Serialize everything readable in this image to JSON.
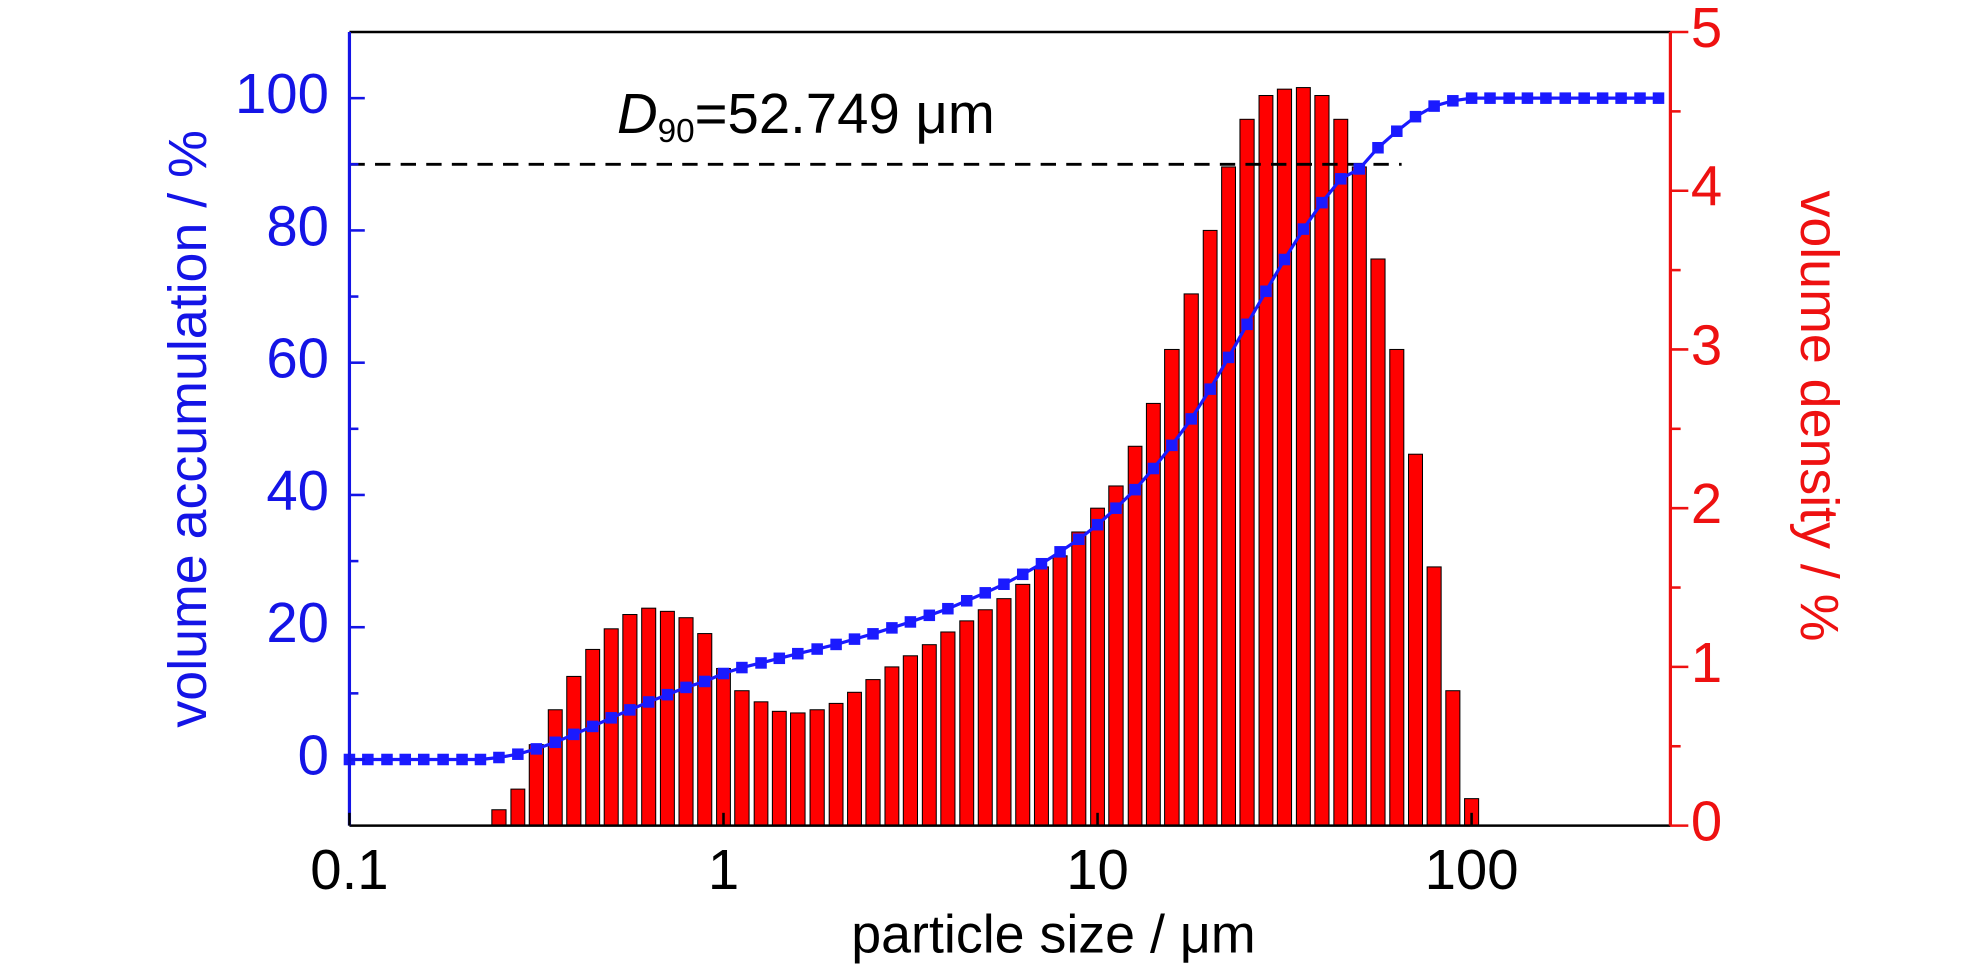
{
  "chart_data": {
    "type": "bar",
    "xlabel": "particle size / μm",
    "ylabel": "volume accumulation / %",
    "y2label": "volume density / %",
    "xscale": "log",
    "xlim": [
      0.1,
      340
    ],
    "xticks": [
      0.1,
      1,
      10,
      100
    ],
    "ylim": [
      -10,
      110
    ],
    "yticks": [
      0,
      20,
      40,
      60,
      80,
      100
    ],
    "yminor": [
      10,
      30,
      50,
      70,
      90
    ],
    "y2lim": [
      0,
      5
    ],
    "y2ticks": [
      0,
      1,
      2,
      3,
      4,
      5
    ],
    "y2minor": [
      0.5,
      1.5,
      2.5,
      3.5,
      4.5
    ],
    "series": [
      {
        "type": "bar",
        "axis": "y2",
        "color": "#ff0000",
        "x": [
          0.251,
          0.282,
          0.316,
          0.355,
          0.398,
          0.447,
          0.501,
          0.562,
          0.631,
          0.708,
          0.794,
          0.891,
          1,
          1.12,
          1.26,
          1.41,
          1.58,
          1.78,
          2,
          2.24,
          2.51,
          2.82,
          3.16,
          3.55,
          3.98,
          4.47,
          5.01,
          5.62,
          6.31,
          7.08,
          7.94,
          8.91,
          10,
          11.2,
          12.6,
          14.1,
          15.8,
          17.8,
          20,
          22.4,
          25.1,
          28.2,
          31.6,
          35.5,
          39.8,
          44.7,
          50.1,
          56.2,
          63.1,
          70.8,
          79.4,
          89.1,
          100
        ],
        "values": [
          0.1,
          0.23,
          0.51,
          0.73,
          0.94,
          1.11,
          1.24,
          1.33,
          1.37,
          1.35,
          1.31,
          1.21,
          0.99,
          0.85,
          0.78,
          0.72,
          0.71,
          0.73,
          0.77,
          0.84,
          0.92,
          1.0,
          1.07,
          1.14,
          1.22,
          1.29,
          1.36,
          1.43,
          1.52,
          1.63,
          1.7,
          1.85,
          2.0,
          2.14,
          2.39,
          2.66,
          3.0,
          3.35,
          3.75,
          4.15,
          4.45,
          4.6,
          4.64,
          4.65,
          4.6,
          4.45,
          4.15,
          3.57,
          3.0,
          2.34,
          1.63,
          0.85,
          0.17
        ]
      },
      {
        "type": "line",
        "color": "#1a1aff",
        "x": [
          0.1,
          0.112,
          0.126,
          0.141,
          0.158,
          0.178,
          0.2,
          0.224,
          0.251,
          0.282,
          0.316,
          0.355,
          0.398,
          0.447,
          0.501,
          0.562,
          0.631,
          0.708,
          0.794,
          0.891,
          1,
          1.12,
          1.26,
          1.41,
          1.58,
          1.78,
          2,
          2.24,
          2.51,
          2.82,
          3.16,
          3.55,
          3.98,
          4.47,
          5.01,
          5.62,
          6.31,
          7.08,
          7.94,
          8.91,
          10,
          11.2,
          12.6,
          14.1,
          15.8,
          17.8,
          20,
          22.4,
          25.1,
          28.2,
          31.6,
          35.5,
          39.8,
          44.7,
          50.1,
          56.2,
          63.1,
          70.8,
          79.4,
          89.1,
          100,
          112,
          126,
          141,
          158,
          178,
          200,
          224,
          251,
          282,
          316
        ],
        "values": [
          0,
          0,
          0,
          0,
          0,
          0,
          0,
          0,
          0.3,
          0.8,
          1.6,
          2.6,
          3.8,
          5.0,
          6.3,
          7.5,
          8.7,
          9.8,
          10.9,
          11.8,
          13.0,
          13.9,
          14.6,
          15.3,
          16.0,
          16.7,
          17.4,
          18.2,
          19.0,
          19.9,
          20.8,
          21.8,
          22.8,
          24.0,
          25.2,
          26.5,
          28.0,
          29.6,
          31.4,
          33.3,
          35.5,
          38.0,
          40.8,
          44.0,
          47.5,
          51.5,
          56.0,
          60.8,
          65.8,
          70.8,
          75.6,
          80.2,
          84.2,
          87.8,
          89.3,
          92.5,
          95.0,
          97.2,
          98.8,
          99.6,
          100,
          100,
          100,
          100,
          100,
          100,
          100,
          100,
          100,
          100,
          100
        ]
      }
    ],
    "reference_line": {
      "y": 90,
      "x": [
        0.1,
        65
      ]
    },
    "annotation": {
      "symbol": "D",
      "subscript": "90",
      "text": "=52.749 μm"
    }
  }
}
